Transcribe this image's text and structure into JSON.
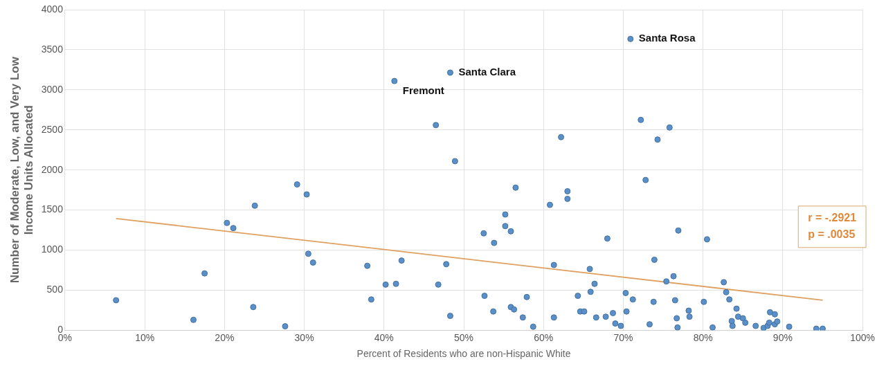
{
  "chart_data": {
    "type": "scatter",
    "xlabel": "Percent of Residents who are non-Hispanic White",
    "ylabel": "Number of Moderate, Low, and Very Low Income Units Allocated",
    "xlim": [
      0,
      100
    ],
    "xticks": [
      {
        "value": 0,
        "label": "0%"
      },
      {
        "value": 10,
        "label": "10%"
      },
      {
        "value": 20,
        "label": "20%"
      },
      {
        "value": 30,
        "label": "30%"
      },
      {
        "value": 40,
        "label": "40%"
      },
      {
        "value": 50,
        "label": "50%"
      },
      {
        "value": 60,
        "label": "60%"
      },
      {
        "value": 70,
        "label": "70%"
      },
      {
        "value": 80,
        "label": "80%"
      },
      {
        "value": 90,
        "label": "90%"
      },
      {
        "value": 100,
        "label": "100%"
      }
    ],
    "ylim": [
      0,
      4000
    ],
    "yticks": [
      0,
      500,
      1000,
      1500,
      2000,
      2500,
      3000,
      3500,
      4000
    ],
    "grid": true,
    "legend": false,
    "marker": "circle",
    "series": [
      {
        "type": "scatter",
        "color": "#5b8fc9",
        "x": [
          6.4,
          16.1,
          17.5,
          20.3,
          21.1,
          23.8,
          23.6,
          27.6,
          29.1,
          30.3,
          30.5,
          31.1,
          37.9,
          38.4,
          40.2,
          41.5,
          41.3,
          42.2,
          46.5,
          46.8,
          47.8,
          48.3,
          48.3,
          48.9,
          52.5,
          52.6,
          53.8,
          53.7,
          55.2,
          55.2,
          55.9,
          55.9,
          56.3,
          56.5,
          57.9,
          57.4,
          58.7,
          60.8,
          62.2,
          61.3,
          61.3,
          63.0,
          63.0,
          64.3,
          64.6,
          65.1,
          65.8,
          66.4,
          65.9,
          66.6,
          67.8,
          68.0,
          70.9,
          72.2,
          75.8,
          74.3,
          72.8,
          76.9,
          80.5,
          73.9,
          76.3,
          75.4,
          82.6,
          82.9,
          83.3,
          70.3,
          71.2,
          73.8,
          76.5,
          80.1,
          78.2,
          78.3,
          76.7,
          76.8,
          70.4,
          68.7,
          69.0,
          69.7,
          73.3,
          81.2,
          84.2,
          83.6,
          83.7,
          84.4,
          85.0,
          85.3,
          86.6,
          87.6,
          88.1,
          88.3,
          88.4,
          89.0,
          89.0,
          89.3,
          90.8,
          94.2,
          95.0
        ],
        "values": [
          375,
          130,
          710,
          1340,
          1275,
          1555,
          290,
          50,
          1820,
          1695,
          955,
          845,
          805,
          385,
          570,
          580,
          3110,
          870,
          2560,
          570,
          825,
          180,
          3215,
          2110,
          1210,
          430,
          1090,
          235,
          1445,
          1300,
          1235,
          290,
          260,
          1780,
          415,
          160,
          45,
          1565,
          2410,
          815,
          160,
          1735,
          1640,
          430,
          235,
          235,
          765,
          580,
          480,
          160,
          170,
          1145,
          3635,
          2625,
          2530,
          2380,
          1875,
          1245,
          1135,
          880,
          675,
          610,
          600,
          475,
          385,
          465,
          385,
          355,
          375,
          355,
          245,
          170,
          150,
          35,
          235,
          215,
          85,
          55,
          75,
          35,
          270,
          115,
          55,
          170,
          150,
          95,
          55,
          30,
          55,
          95,
          225,
          200,
          75,
          110,
          45,
          20,
          20
        ]
      },
      {
        "type": "line",
        "color": "#e0a060",
        "marker": "none",
        "x": [
          6.4,
          95.0
        ],
        "values": [
          1395,
          375
        ]
      }
    ],
    "annotations": [
      {
        "text": "Santa Rosa",
        "x": 70.9,
        "y": 3635
      },
      {
        "text": "Santa Clara",
        "x": 48.3,
        "y": 3215
      },
      {
        "text": "Fremont",
        "x": 41.3,
        "y": 3110
      },
      "r = -.2921",
      "p = .0035"
    ]
  }
}
